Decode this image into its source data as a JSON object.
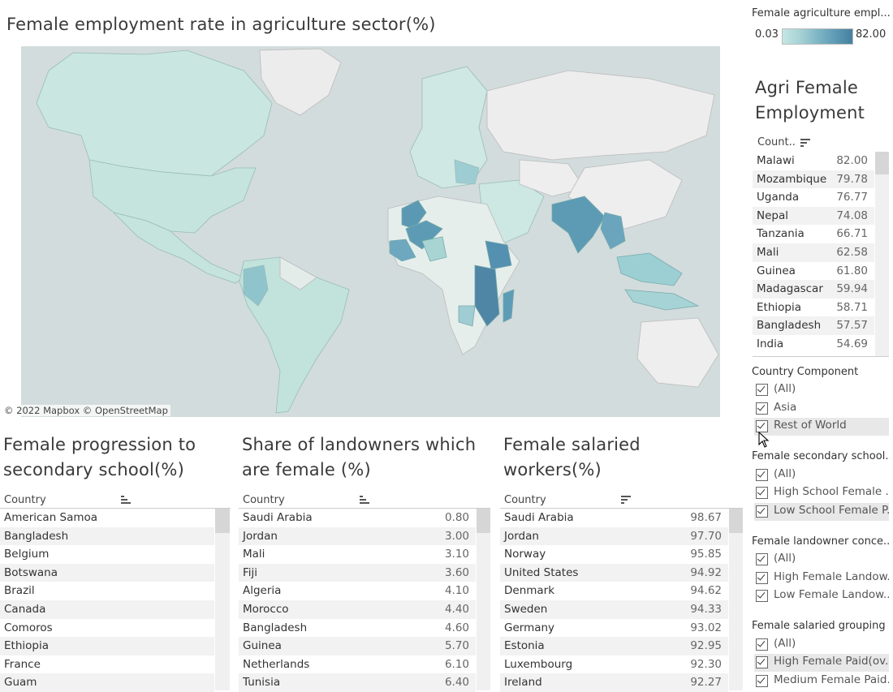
{
  "map_panel": {
    "title": "Female employment rate in agriculture sector(%)",
    "attribution": "© 2022 Mapbox © OpenStreetMap"
  },
  "legend": {
    "title": "Female agriculture empl...",
    "min_label": "0.03",
    "max_label": "82.00",
    "color_low": "#c4e6e3",
    "color_high": "#467f9f"
  },
  "agri_table": {
    "title": "Agri Female Employment",
    "column_header": "Count..",
    "rows": [
      {
        "country": "Malawi",
        "value": "82.00"
      },
      {
        "country": "Mozambique",
        "value": "79.78"
      },
      {
        "country": "Uganda",
        "value": "76.77"
      },
      {
        "country": "Nepal",
        "value": "74.08"
      },
      {
        "country": "Tanzania",
        "value": "66.71"
      },
      {
        "country": "Mali",
        "value": "62.58"
      },
      {
        "country": "Guinea",
        "value": "61.80"
      },
      {
        "country": "Madagascar",
        "value": "59.94"
      },
      {
        "country": "Ethiopia",
        "value": "58.71"
      },
      {
        "country": "Bangladesh",
        "value": "57.57"
      },
      {
        "country": "India",
        "value": "54.69"
      }
    ]
  },
  "secondary_table": {
    "title": "Female progression to secondary school(%)",
    "column_header": "Country",
    "rows": [
      "American Samoa",
      "Bangladesh",
      "Belgium",
      "Botswana",
      "Brazil",
      "Canada",
      "Comoros",
      "Ethiopia",
      "France",
      "Guam"
    ]
  },
  "landowner_table": {
    "title": "Share of landowners which are female (%)",
    "column_header": "Country",
    "rows": [
      {
        "country": "Saudi Arabia",
        "value": "0.80"
      },
      {
        "country": "Jordan",
        "value": "3.00"
      },
      {
        "country": "Mali",
        "value": "3.10"
      },
      {
        "country": "Fiji",
        "value": "3.60"
      },
      {
        "country": "Algeria",
        "value": "4.10"
      },
      {
        "country": "Morocco",
        "value": "4.40"
      },
      {
        "country": "Bangladesh",
        "value": "4.60"
      },
      {
        "country": "Guinea",
        "value": "5.70"
      },
      {
        "country": "Netherlands",
        "value": "6.10"
      },
      {
        "country": "Tunisia",
        "value": "6.40"
      }
    ]
  },
  "salaried_table": {
    "title": "Female salaried workers(%)",
    "column_header": "Country",
    "rows": [
      {
        "country": "Saudi Arabia",
        "value": "98.67"
      },
      {
        "country": "Jordan",
        "value": "97.70"
      },
      {
        "country": "Norway",
        "value": "95.85"
      },
      {
        "country": "United States",
        "value": "94.92"
      },
      {
        "country": "Denmark",
        "value": "94.62"
      },
      {
        "country": "Sweden",
        "value": "94.33"
      },
      {
        "country": "Germany",
        "value": "93.02"
      },
      {
        "country": "Estonia",
        "value": "92.95"
      },
      {
        "country": "Luxembourg",
        "value": "92.30"
      },
      {
        "country": "Ireland",
        "value": "92.27"
      }
    ]
  },
  "filters": {
    "country_component": {
      "title": "Country Component",
      "options": [
        "(All)",
        "Asia",
        "Rest of World"
      ]
    },
    "secondary": {
      "title": "Female secondary school...",
      "options": [
        "(All)",
        "High School Female ...",
        "Low School Female P..."
      ]
    },
    "landowner": {
      "title": "Female landowner conce...",
      "options": [
        "(All)",
        "High Female Landow...",
        "Low Female Landow..."
      ]
    },
    "salaried": {
      "title": "Female salaried grouping",
      "options": [
        "(All)",
        "High Female Paid(ov...",
        "Medium Female Paid..."
      ]
    }
  }
}
